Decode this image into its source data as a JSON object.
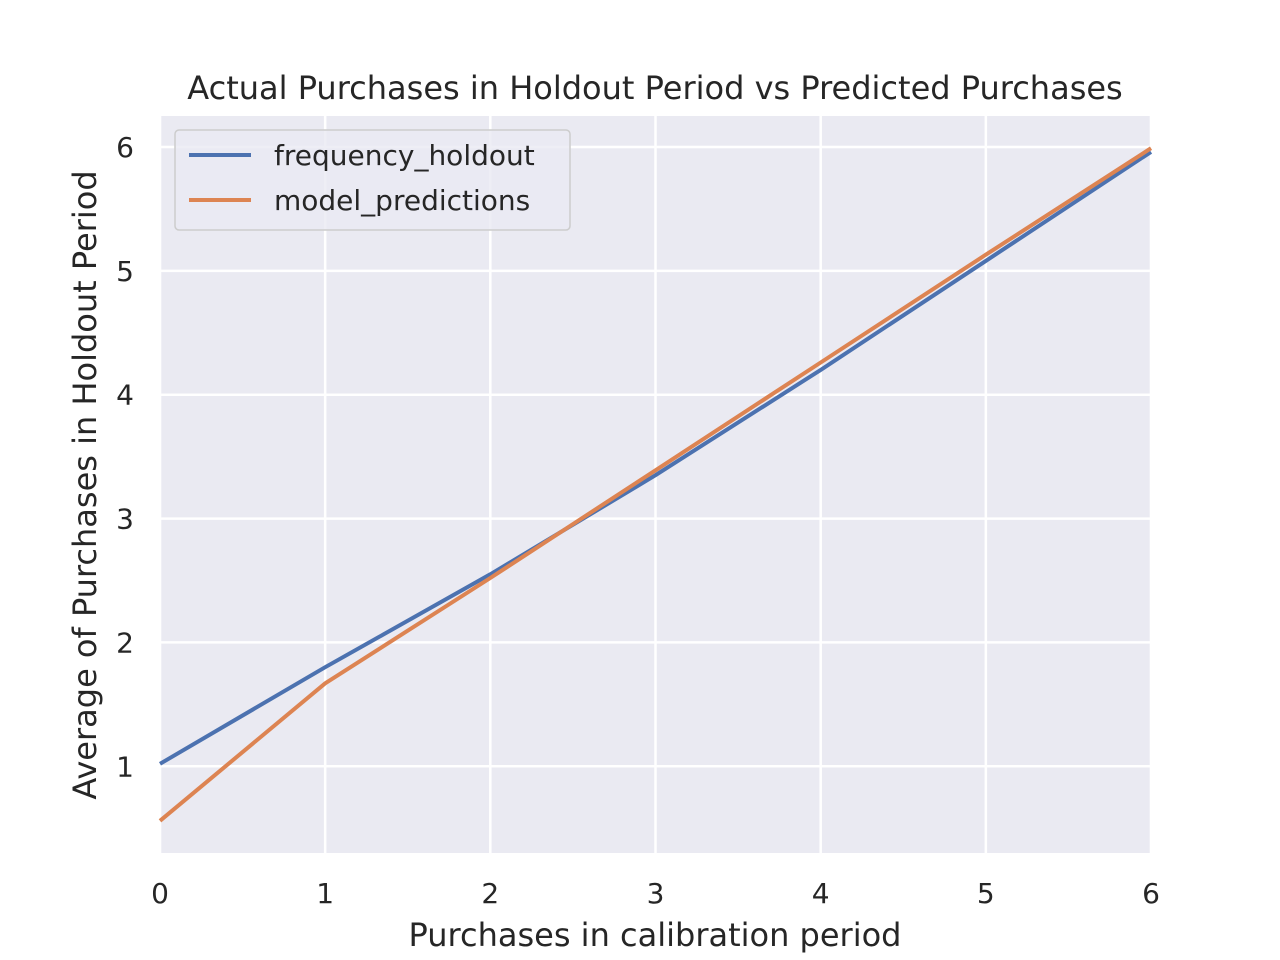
{
  "chart_data": {
    "type": "line",
    "title": "Actual Purchases in Holdout Period vs Predicted Purchases",
    "xlabel": "Purchases in calibration period",
    "ylabel": "Average of Purchases in Holdout Period",
    "xlim": [
      0,
      6
    ],
    "ylim": [
      0.3,
      6.25
    ],
    "xticks": [
      "0",
      "1",
      "2",
      "3",
      "4",
      "5",
      "6"
    ],
    "yticks": [
      "1",
      "2",
      "3",
      "4",
      "5",
      "6"
    ],
    "grid": true,
    "legend_position": "top-left",
    "x": [
      0,
      1,
      2,
      3,
      4,
      5,
      6
    ],
    "series": [
      {
        "name": "frequency_holdout",
        "color": "#4c72b0",
        "values": [
          1.02,
          1.8,
          2.55,
          3.35,
          4.2,
          5.08,
          5.96
        ]
      },
      {
        "name": "model_predictions",
        "color": "#dd8452",
        "values": [
          0.56,
          1.67,
          2.52,
          3.39,
          4.26,
          5.13,
          5.99
        ]
      }
    ]
  }
}
